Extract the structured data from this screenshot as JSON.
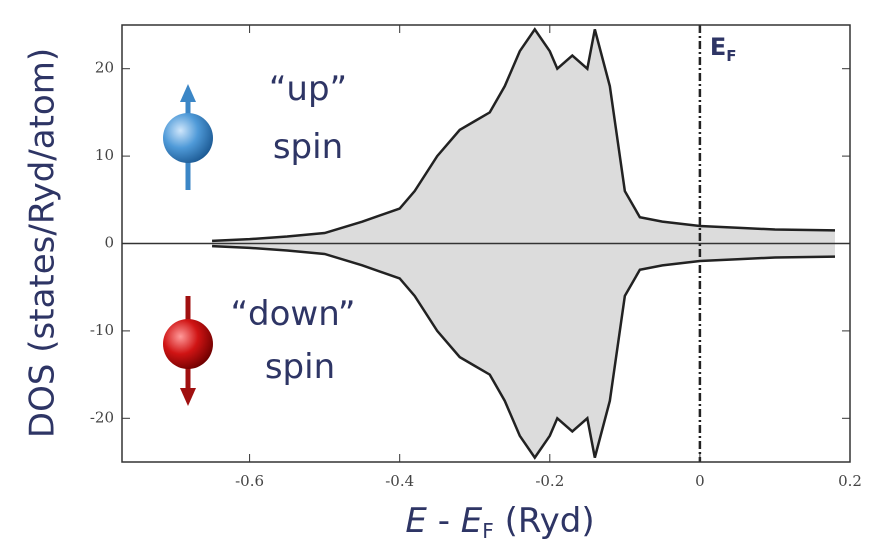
{
  "chart_data": {
    "type": "area",
    "ylabel": "DOS (states/Ryd/atom)",
    "xlabel_parts": [
      "E",
      " - ",
      "E",
      "F",
      " (Ryd)"
    ],
    "fermi_label_parts": [
      "E",
      "F"
    ],
    "up_label": [
      "“up”",
      "spin"
    ],
    "down_label": [
      "“down”",
      "spin"
    ],
    "x": [
      -0.65,
      -0.6,
      -0.55,
      -0.5,
      -0.45,
      -0.4,
      -0.38,
      -0.35,
      -0.32,
      -0.3,
      -0.28,
      -0.26,
      -0.24,
      -0.22,
      -0.2,
      -0.19,
      -0.17,
      -0.15,
      -0.14,
      -0.12,
      -0.1,
      -0.08,
      -0.05,
      0,
      0.05,
      0.1,
      0.18
    ],
    "series": [
      {
        "color": "#222222",
        "values": [
          0.3,
          0.5,
          0.8,
          1.2,
          2.5,
          4,
          6,
          10,
          13,
          14,
          15,
          18,
          22,
          24.5,
          22,
          20,
          21.5,
          20,
          24.5,
          18,
          6,
          3,
          2.5,
          2,
          1.8,
          1.6,
          1.5
        ]
      },
      {
        "color": "#222222",
        "values": [
          -0.3,
          -0.5,
          -0.8,
          -1.2,
          -2.5,
          -4,
          -6,
          -10,
          -13,
          -14,
          -15,
          -18,
          -22,
          -24.5,
          -22,
          -20,
          -21.5,
          -20,
          -24.5,
          -18,
          -6,
          -3,
          -2.5,
          -2,
          -1.8,
          -1.6,
          -1.5
        ]
      }
    ],
    "fill": "#dcdcdc",
    "fermi_x": 0,
    "xlim": [
      -0.77,
      0.2
    ],
    "ylim": [
      -25,
      25
    ],
    "xticks": [
      -0.6,
      -0.4,
      -0.2,
      0,
      0.2
    ],
    "yticks": [
      20,
      10,
      0,
      -10,
      -20
    ]
  }
}
